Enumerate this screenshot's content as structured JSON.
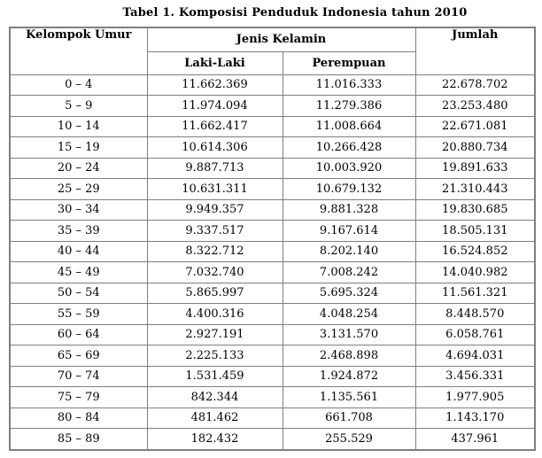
{
  "title": "Tabel 1. Komposisi Penduduk Indonesia tahun 2010",
  "colors": {
    "border": "#7f7f7f",
    "text": "#000000",
    "background": "#ffffff"
  },
  "table": {
    "header": {
      "kelompok_umur": "Kelompok Umur",
      "jenis_kelamin": "Jenis Kelamin",
      "laki_laki": "Laki-Laki",
      "perempuan": "Perempuan",
      "jumlah": "Jumlah"
    },
    "row_keys": [
      "umur",
      "laki_laki",
      "perempuan",
      "jumlah"
    ],
    "rows": [
      {
        "umur": "0 – 4",
        "laki_laki": "11.662.369",
        "perempuan": "11.016.333",
        "jumlah": "22.678.702"
      },
      {
        "umur": "5 – 9",
        "laki_laki": "11.974.094",
        "perempuan": "11.279.386",
        "jumlah": "23.253.480"
      },
      {
        "umur": "10 – 14",
        "laki_laki": "11.662.417",
        "perempuan": "11.008.664",
        "jumlah": "22.671.081"
      },
      {
        "umur": "15 – 19",
        "laki_laki": "10.614.306",
        "perempuan": "10.266.428",
        "jumlah": "20.880.734"
      },
      {
        "umur": "20 – 24",
        "laki_laki": "9.887.713",
        "perempuan": "10.003.920",
        "jumlah": "19.891.633"
      },
      {
        "umur": "25 – 29",
        "laki_laki": "10.631.311",
        "perempuan": "10.679.132",
        "jumlah": "21.310.443"
      },
      {
        "umur": "30 – 34",
        "laki_laki": "9.949.357",
        "perempuan": "9.881.328",
        "jumlah": "19.830.685"
      },
      {
        "umur": "35 – 39",
        "laki_laki": "9.337.517",
        "perempuan": "9.167.614",
        "jumlah": "18.505.131"
      },
      {
        "umur": "40 – 44",
        "laki_laki": "8.322.712",
        "perempuan": "8.202.140",
        "jumlah": "16.524.852"
      },
      {
        "umur": "45 – 49",
        "laki_laki": "7.032.740",
        "perempuan": "7.008.242",
        "jumlah": "14.040.982"
      },
      {
        "umur": "50 – 54",
        "laki_laki": "5.865.997",
        "perempuan": "5.695.324",
        "jumlah": "11.561.321"
      },
      {
        "umur": "55 – 59",
        "laki_laki": "4.400.316",
        "perempuan": "4.048.254",
        "jumlah": "8.448.570"
      },
      {
        "umur": "60 – 64",
        "laki_laki": "2.927.191",
        "perempuan": "3.131.570",
        "jumlah": "6.058.761"
      },
      {
        "umur": "65 – 69",
        "laki_laki": "2.225.133",
        "perempuan": "2.468.898",
        "jumlah": "4.694.031"
      },
      {
        "umur": "70 – 74",
        "laki_laki": "1.531.459",
        "perempuan": "1.924.872",
        "jumlah": "3.456.331"
      },
      {
        "umur": "75 – 79",
        "laki_laki": "842.344",
        "perempuan": "1.135.561",
        "jumlah": "1.977.905"
      },
      {
        "umur": "80 – 84",
        "laki_laki": "481.462",
        "perempuan": "661.708",
        "jumlah": "1.143.170"
      },
      {
        "umur": "85 – 89",
        "laki_laki": "182.432",
        "perempuan": "255.529",
        "jumlah": "437.961"
      }
    ]
  }
}
